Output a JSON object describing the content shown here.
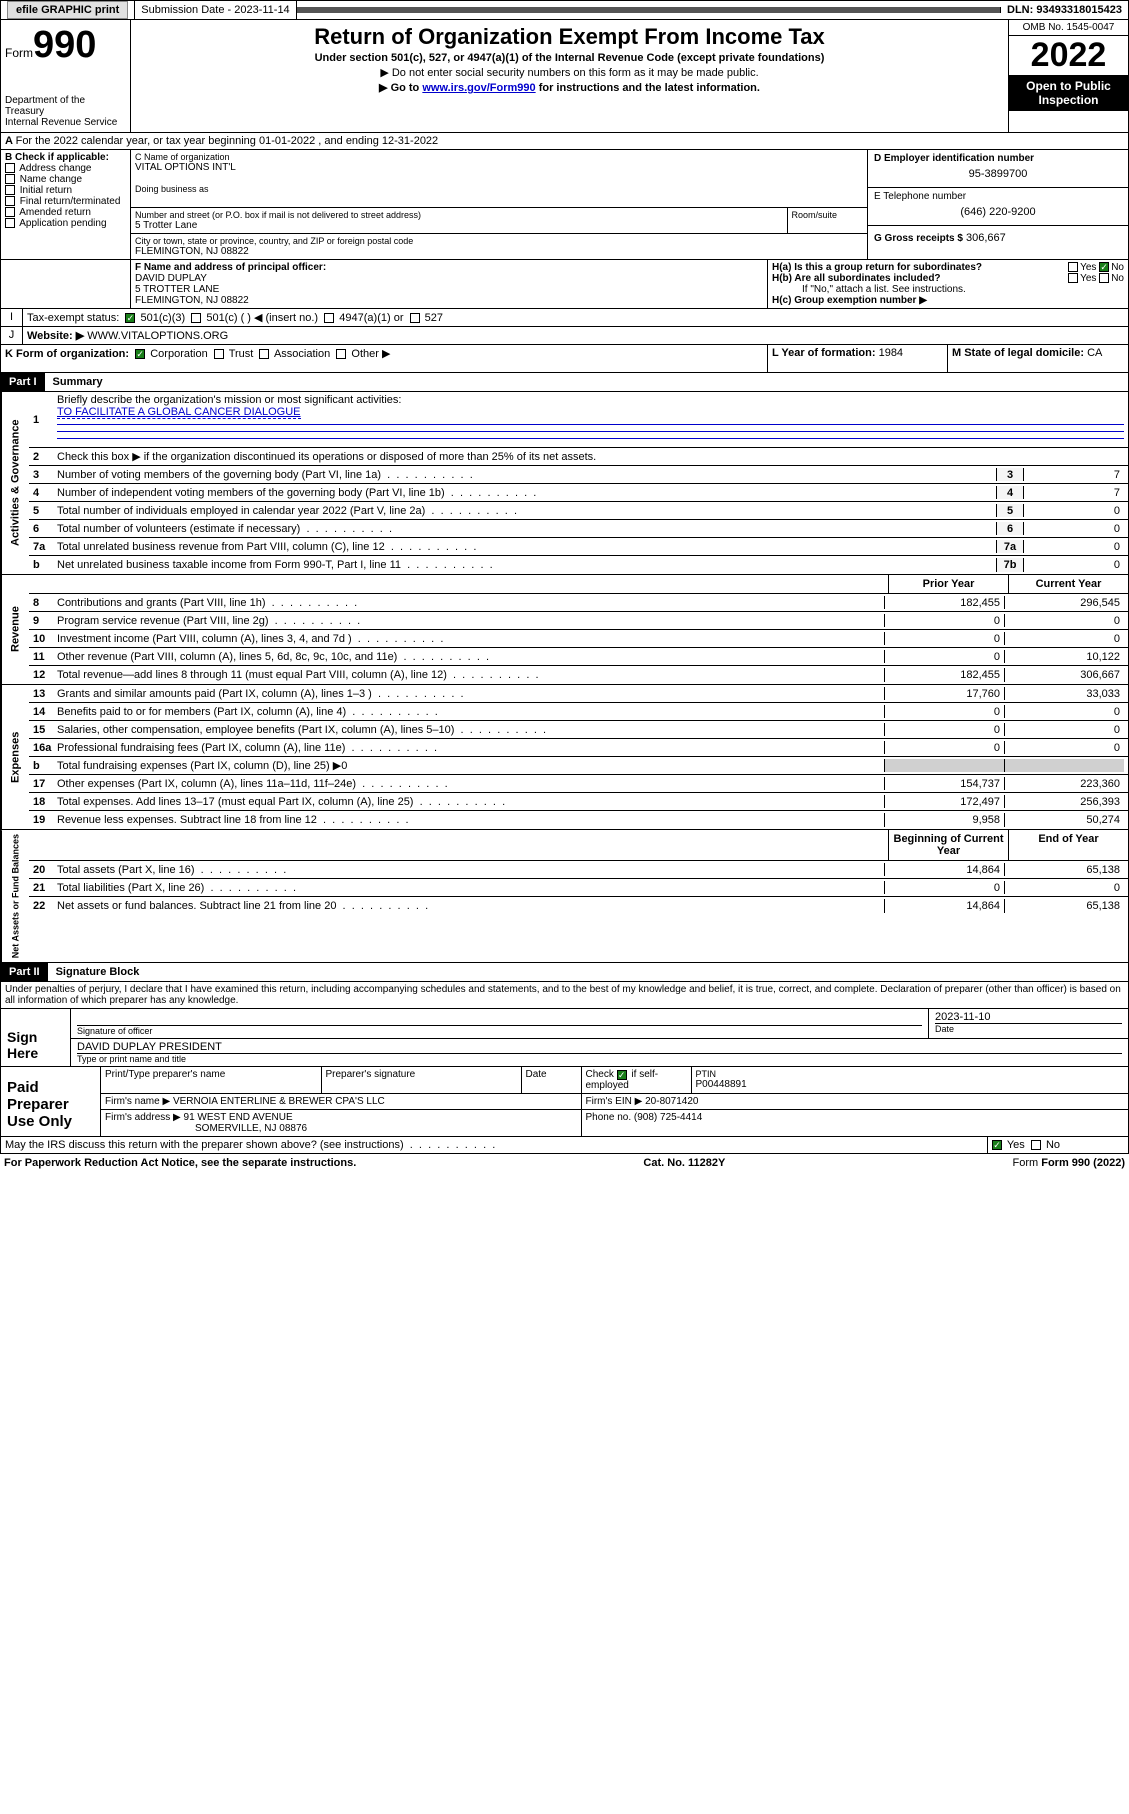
{
  "topbar": {
    "efile": "efile GRAPHIC print",
    "submission": "Submission Date - 2023-11-14",
    "dln": "DLN: 93493318015423"
  },
  "header": {
    "form_word": "Form",
    "form_num": "990",
    "dept": "Department of the Treasury",
    "irs": "Internal Revenue Service",
    "title": "Return of Organization Exempt From Income Tax",
    "sub1": "Under section 501(c), 527, or 4947(a)(1) of the Internal Revenue Code (except private foundations)",
    "sub2": "▶ Do not enter social security numbers on this form as it may be made public.",
    "sub3_pre": "▶ Go to ",
    "sub3_link": "www.irs.gov/Form990",
    "sub3_post": " for instructions and the latest information.",
    "omb": "OMB No. 1545-0047",
    "year": "2022",
    "open": "Open to Public Inspection"
  },
  "linea": {
    "text": "For the 2022 calendar year, or tax year beginning 01-01-2022   , and ending 12-31-2022"
  },
  "boxB": {
    "label": "B Check if applicable:",
    "opts": [
      "Address change",
      "Name change",
      "Initial return",
      "Final return/terminated",
      "Amended return",
      "Application pending"
    ]
  },
  "boxC": {
    "label": "C Name of organization",
    "name": "VITAL OPTIONS INT'L",
    "dba_label": "Doing business as",
    "addr_label": "Number and street (or P.O. box if mail is not delivered to street address)",
    "room": "Room/suite",
    "addr": "5 Trotter Lane",
    "city_label": "City or town, state or province, country, and ZIP or foreign postal code",
    "city": "FLEMINGTON, NJ  08822"
  },
  "boxD": {
    "label": "D Employer identification number",
    "val": "95-3899700"
  },
  "boxE": {
    "label": "E Telephone number",
    "val": "(646) 220-9200"
  },
  "boxG": {
    "label": "G Gross receipts $",
    "val": "306,667"
  },
  "boxF": {
    "label": "F Name and address of principal officer:",
    "name": "DAVID DUPLAY",
    "addr1": "5 TROTTER LANE",
    "addr2": "FLEMINGTON, NJ  08822"
  },
  "boxH": {
    "ha": "H(a)  Is this a group return for subordinates?",
    "hb": "H(b)  Are all subordinates included?",
    "hb_note": "If \"No,\" attach a list. See instructions.",
    "hc": "H(c)  Group exemption number ▶",
    "yes": "Yes",
    "no": "No"
  },
  "boxI": {
    "label": "Tax-exempt status:",
    "o1": "501(c)(3)",
    "o2": "501(c) (  ) ◀ (insert no.)",
    "o3": "4947(a)(1) or",
    "o4": "527"
  },
  "boxJ": {
    "label": "Website: ▶",
    "val": "WWW.VITALOPTIONS.ORG"
  },
  "boxK": {
    "label": "K Form of organization:",
    "o1": "Corporation",
    "o2": "Trust",
    "o3": "Association",
    "o4": "Other ▶"
  },
  "boxL": {
    "label": "L Year of formation:",
    "val": "1984"
  },
  "boxM": {
    "label": "M State of legal domicile:",
    "val": "CA"
  },
  "part1": {
    "hdr": "Part I",
    "title": "Summary"
  },
  "gov": {
    "label": "Activities & Governance",
    "l1": "Briefly describe the organization's mission or most significant activities:",
    "l1v": "TO FACILITATE A GLOBAL CANCER DIALOGUE",
    "l2": "Check this box ▶      if the organization discontinued its operations or disposed of more than 25% of its net assets.",
    "rows": [
      {
        "n": "3",
        "t": "Number of voting members of the governing body (Part VI, line 1a)",
        "b": "3",
        "v": "7"
      },
      {
        "n": "4",
        "t": "Number of independent voting members of the governing body (Part VI, line 1b)",
        "b": "4",
        "v": "7"
      },
      {
        "n": "5",
        "t": "Total number of individuals employed in calendar year 2022 (Part V, line 2a)",
        "b": "5",
        "v": "0"
      },
      {
        "n": "6",
        "t": "Total number of volunteers (estimate if necessary)",
        "b": "6",
        "v": "0"
      },
      {
        "n": "7a",
        "t": "Total unrelated business revenue from Part VIII, column (C), line 12",
        "b": "7a",
        "v": "0"
      },
      {
        "n": "b",
        "t": "Net unrelated business taxable income from Form 990-T, Part I, line 11",
        "b": "7b",
        "v": "0"
      }
    ]
  },
  "cols": {
    "prior": "Prior Year",
    "current": "Current Year",
    "begin": "Beginning of Current Year",
    "end": "End of Year"
  },
  "rev": {
    "label": "Revenue",
    "rows": [
      {
        "n": "8",
        "t": "Contributions and grants (Part VIII, line 1h)",
        "p": "182,455",
        "c": "296,545"
      },
      {
        "n": "9",
        "t": "Program service revenue (Part VIII, line 2g)",
        "p": "0",
        "c": "0"
      },
      {
        "n": "10",
        "t": "Investment income (Part VIII, column (A), lines 3, 4, and 7d )",
        "p": "0",
        "c": "0"
      },
      {
        "n": "11",
        "t": "Other revenue (Part VIII, column (A), lines 5, 6d, 8c, 9c, 10c, and 11e)",
        "p": "0",
        "c": "10,122"
      },
      {
        "n": "12",
        "t": "Total revenue—add lines 8 through 11 (must equal Part VIII, column (A), line 12)",
        "p": "182,455",
        "c": "306,667"
      }
    ]
  },
  "exp": {
    "label": "Expenses",
    "rows": [
      {
        "n": "13",
        "t": "Grants and similar amounts paid (Part IX, column (A), lines 1–3 )",
        "p": "17,760",
        "c": "33,033"
      },
      {
        "n": "14",
        "t": "Benefits paid to or for members (Part IX, column (A), line 4)",
        "p": "0",
        "c": "0"
      },
      {
        "n": "15",
        "t": "Salaries, other compensation, employee benefits (Part IX, column (A), lines 5–10)",
        "p": "0",
        "c": "0"
      },
      {
        "n": "16a",
        "t": "Professional fundraising fees (Part IX, column (A), line 11e)",
        "p": "0",
        "c": "0"
      },
      {
        "n": "b",
        "t": "Total fundraising expenses (Part IX, column (D), line 25) ▶0",
        "p": "",
        "c": "",
        "shade": true
      },
      {
        "n": "17",
        "t": "Other expenses (Part IX, column (A), lines 11a–11d, 11f–24e)",
        "p": "154,737",
        "c": "223,360"
      },
      {
        "n": "18",
        "t": "Total expenses. Add lines 13–17 (must equal Part IX, column (A), line 25)",
        "p": "172,497",
        "c": "256,393"
      },
      {
        "n": "19",
        "t": "Revenue less expenses. Subtract line 18 from line 12",
        "p": "9,958",
        "c": "50,274"
      }
    ]
  },
  "net": {
    "label": "Net Assets or Fund Balances",
    "rows": [
      {
        "n": "20",
        "t": "Total assets (Part X, line 16)",
        "p": "14,864",
        "c": "65,138"
      },
      {
        "n": "21",
        "t": "Total liabilities (Part X, line 26)",
        "p": "0",
        "c": "0"
      },
      {
        "n": "22",
        "t": "Net assets or fund balances. Subtract line 21 from line 20",
        "p": "14,864",
        "c": "65,138"
      }
    ]
  },
  "part2": {
    "hdr": "Part II",
    "title": "Signature Block"
  },
  "perjury": "Under penalties of perjury, I declare that I have examined this return, including accompanying schedules and statements, and to the best of my knowledge and belief, it is true, correct, and complete. Declaration of preparer (other than officer) is based on all information of which preparer has any knowledge.",
  "sign": {
    "here": "Sign Here",
    "sig_label": "Signature of officer",
    "date_label": "Date",
    "date": "2023-11-10",
    "name": "DAVID DUPLAY PRESIDENT",
    "name_label": "Type or print name and title"
  },
  "prep": {
    "label": "Paid Preparer Use Only",
    "h1": "Print/Type preparer's name",
    "h2": "Preparer's signature",
    "h3": "Date",
    "h4": "Check",
    "h4b": "if self-employed",
    "h5": "PTIN",
    "ptin": "P00448891",
    "firm_label": "Firm's name   ▶",
    "firm": "VERNOIA ENTERLINE & BREWER CPA'S LLC",
    "ein_label": "Firm's EIN ▶",
    "ein": "20-8071420",
    "addr_label": "Firm's address ▶",
    "addr1": "91 WEST END AVENUE",
    "addr2": "SOMERVILLE, NJ  08876",
    "phone_label": "Phone no.",
    "phone": "(908) 725-4414"
  },
  "discuss": "May the IRS discuss this return with the preparer shown above? (see instructions)",
  "footer": {
    "l": "For Paperwork Reduction Act Notice, see the separate instructions.",
    "m": "Cat. No. 11282Y",
    "r": "Form 990 (2022)"
  }
}
